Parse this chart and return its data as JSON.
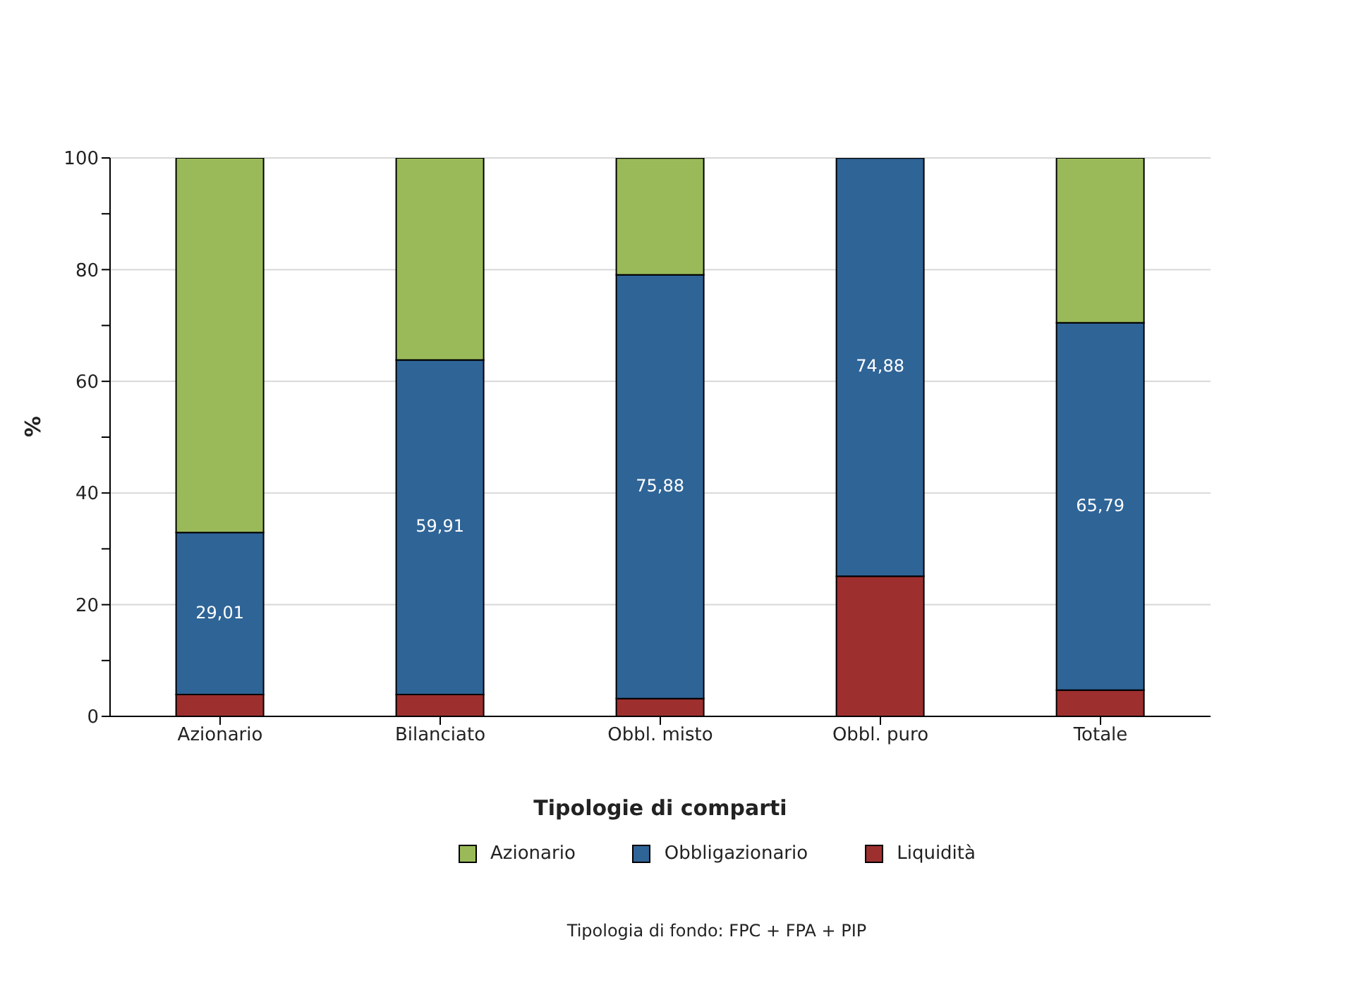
{
  "chart_data": {
    "type": "bar",
    "stacked": true,
    "xlabel": "Tipologie di comparti",
    "ylabel": "%",
    "categories": [
      "Azionario",
      "Bilanciato",
      "Obbl. misto",
      "Obbl. puro",
      "Totale"
    ],
    "series": [
      {
        "name": "Liquidità",
        "color": "#9e2f2f",
        "values": [
          3.9,
          3.9,
          3.2,
          25.1,
          4.7
        ]
      },
      {
        "name": "Obbligazionario",
        "color": "#2f6497",
        "values": [
          29.01,
          59.91,
          75.88,
          74.88,
          65.79
        ],
        "value_labels": [
          "29,01",
          "59,91",
          "75,88",
          "74,88",
          "65,79"
        ]
      },
      {
        "name": "Azionario",
        "color": "#9aba59",
        "values": [
          67.1,
          36.2,
          20.9,
          0,
          29.5
        ]
      }
    ],
    "ylim": [
      0,
      100
    ],
    "yticks": [
      0,
      {
        "value": 10,
        "label": null
      },
      20,
      {
        "value": 30,
        "label": null
      },
      40,
      {
        "value": 50,
        "label": null
      },
      60,
      {
        "value": 70,
        "label": null
      },
      80,
      {
        "value": 90,
        "label": null
      },
      100
    ],
    "grid": "y",
    "legend": "bottom",
    "annotations": [
      "Tipologia di fondo: FPC + FPA + PIP"
    ]
  }
}
